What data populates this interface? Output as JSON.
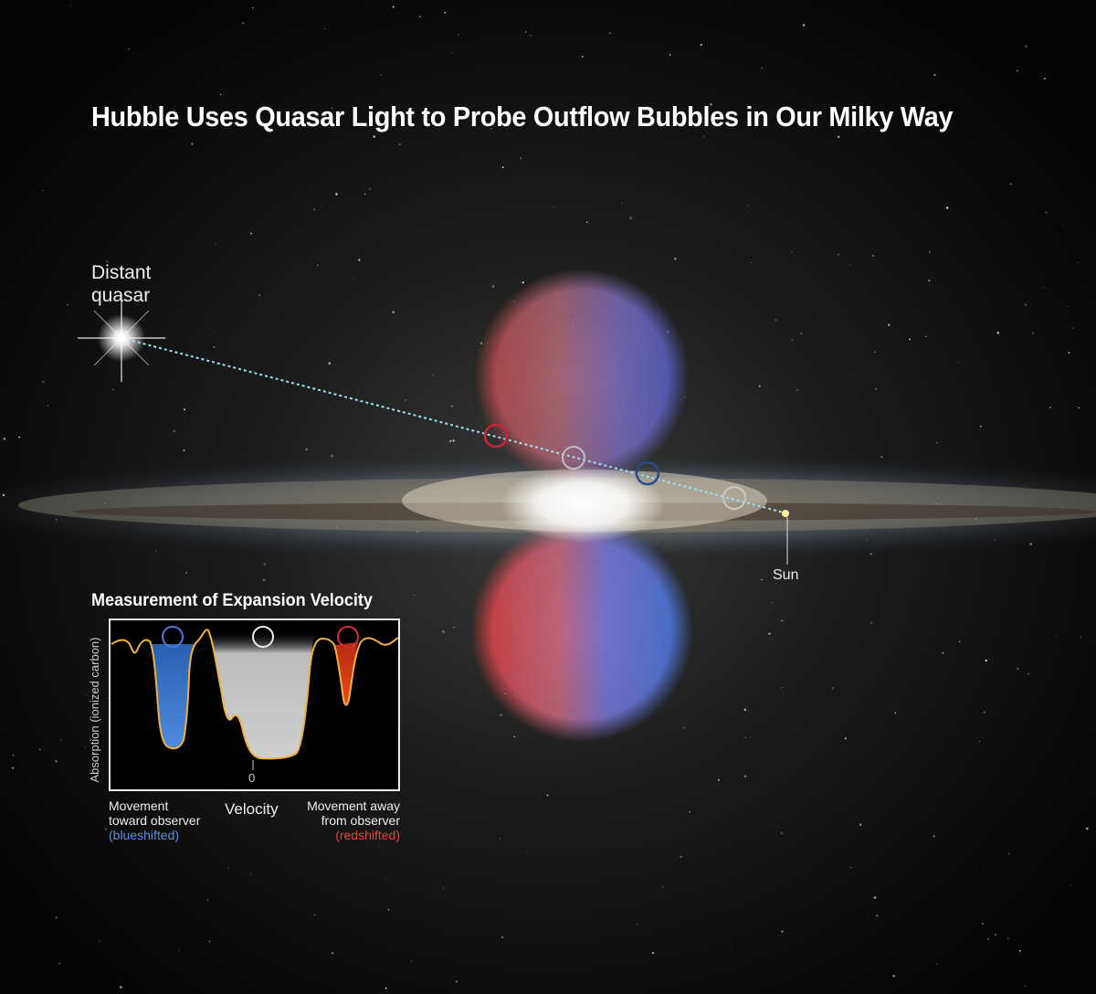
{
  "title": "Hubble Uses Quasar Light to Probe Outflow Bubbles in Our Milky Way",
  "labels": {
    "quasar_line1": "Distant",
    "quasar_line2": "quasar",
    "sun": "Sun"
  },
  "inset": {
    "title": "Measurement of Expansion Velocity",
    "ylabel": "Absorption (ionized carbon)",
    "xlabel": "Velocity",
    "zero_tick": "0",
    "left_caption": [
      "Movement",
      "toward observer",
      "(blueshifted)"
    ],
    "right_caption": [
      "Movement away",
      "from observer",
      "(redshifted)"
    ]
  },
  "colors": {
    "blueshift": "#3f7fd6",
    "redshift": "#e53a22",
    "neutral": "#c9c9c9",
    "curve": "#f0b040",
    "sightline": "#9fe0f0"
  },
  "markers": [
    "red",
    "white",
    "blue",
    "white"
  ]
}
